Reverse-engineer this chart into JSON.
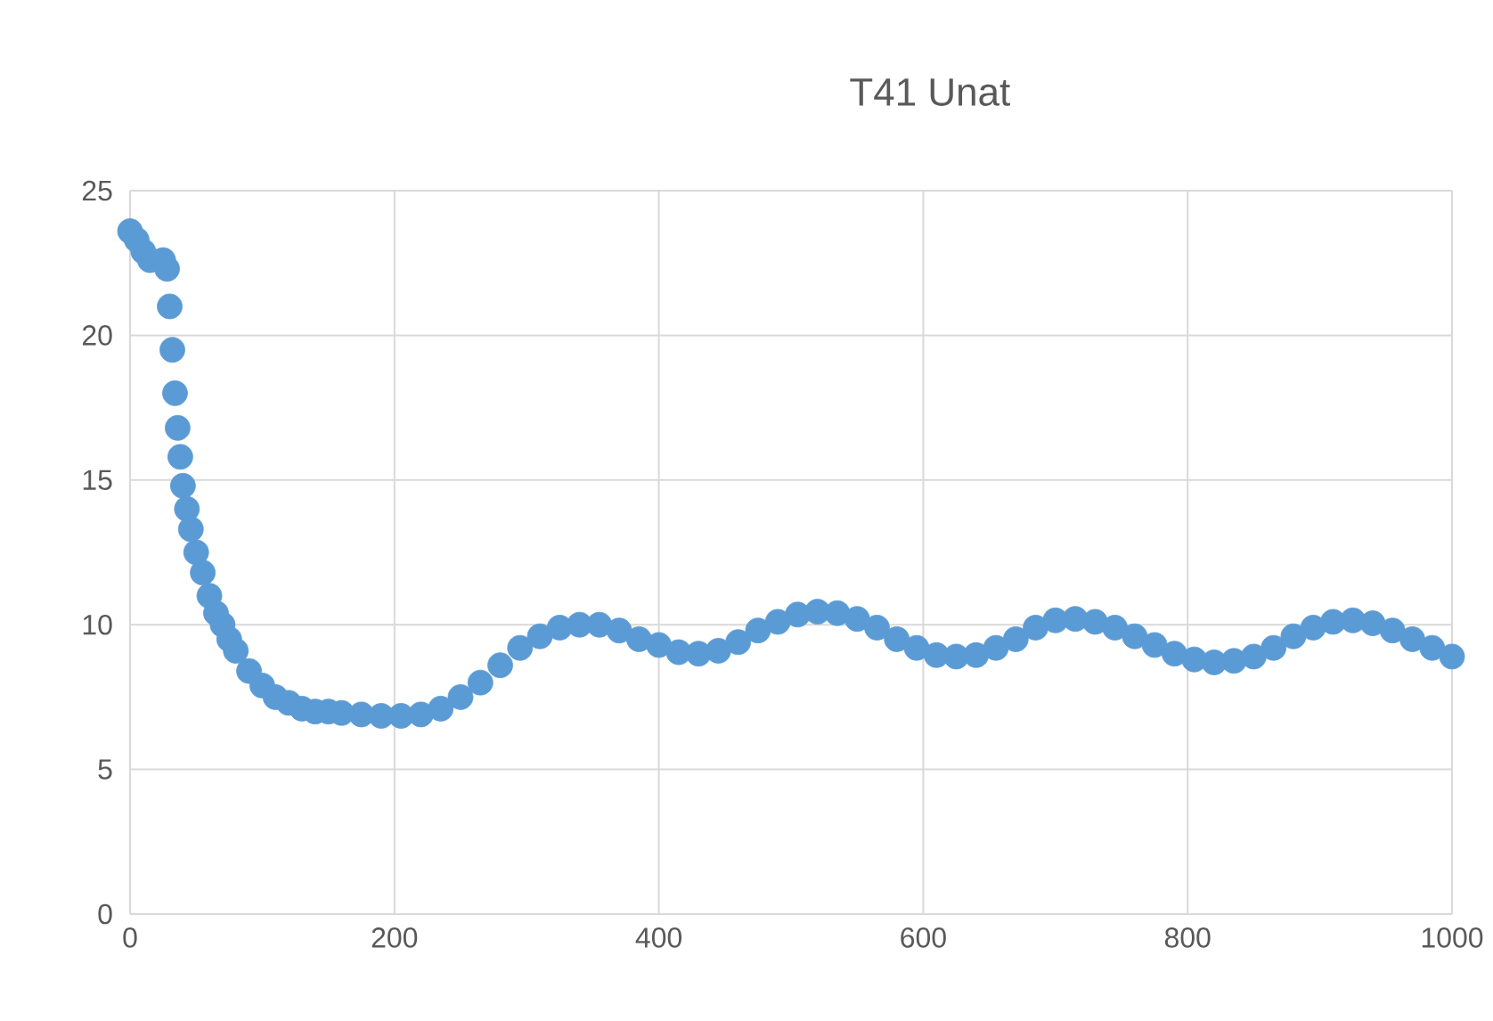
{
  "chart_data": {
    "type": "scatter",
    "title": "T41 Unat",
    "series": [
      {
        "color": "#5b9bd5",
        "x": [
          0,
          5,
          10,
          15,
          25,
          28,
          30,
          32,
          34,
          36,
          38,
          40,
          43,
          46,
          50,
          55,
          60,
          65,
          70,
          75,
          80,
          90,
          100,
          110,
          120,
          130,
          140,
          150,
          160,
          175,
          190,
          205,
          220,
          235,
          250,
          265,
          280,
          295,
          310,
          325,
          340,
          355,
          370,
          385,
          400,
          415,
          430,
          445,
          460,
          475,
          490,
          505,
          520,
          535,
          550,
          565,
          580,
          595,
          610,
          625,
          640,
          655,
          670,
          685,
          700,
          715,
          730,
          745,
          760,
          775,
          790,
          805,
          820,
          835,
          850,
          865,
          880,
          895,
          910,
          925,
          940,
          955,
          970,
          985,
          1000
        ],
        "values": [
          23.6,
          23.3,
          22.9,
          22.6,
          22.6,
          22.3,
          21.0,
          19.5,
          18.0,
          16.8,
          15.8,
          14.8,
          14.0,
          13.3,
          12.5,
          11.8,
          11.0,
          10.4,
          10.0,
          9.5,
          9.1,
          8.4,
          7.9,
          7.5,
          7.3,
          7.1,
          7.0,
          7.0,
          6.95,
          6.9,
          6.85,
          6.85,
          6.9,
          7.1,
          7.5,
          8.0,
          8.6,
          9.2,
          9.6,
          9.9,
          10.0,
          10.0,
          9.8,
          9.5,
          9.3,
          9.05,
          9.0,
          9.1,
          9.4,
          9.8,
          10.1,
          10.35,
          10.45,
          10.4,
          10.2,
          9.9,
          9.5,
          9.2,
          8.95,
          8.9,
          8.95,
          9.2,
          9.5,
          9.9,
          10.15,
          10.2,
          10.1,
          9.9,
          9.6,
          9.3,
          9.0,
          8.8,
          8.7,
          8.75,
          8.9,
          9.2,
          9.6,
          9.9,
          10.1,
          10.15,
          10.05,
          9.8,
          9.5,
          9.2,
          8.9
        ]
      }
    ],
    "xlim": [
      0,
      1000
    ],
    "xticks": [
      0,
      200,
      400,
      600,
      800,
      1000
    ],
    "ylim": [
      0,
      25
    ],
    "yticks": [
      0,
      5,
      10,
      15,
      20,
      25
    ],
    "grid": true,
    "marker": "circle"
  }
}
